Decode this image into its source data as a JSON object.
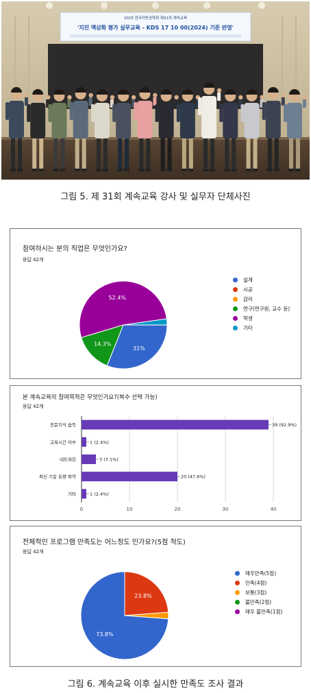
{
  "photo": {
    "banner_line1": "2025 한국지반공학회 제31회 계속교육",
    "banner_line2": "'지진 액상화 평가 실무교육 - KDS 17 10 00(2024) 기준 반영'",
    "person_count": 14
  },
  "caption1": "그림 5. 제 31회 계속교육 강사 및 실무자 단체사진",
  "caption2": "그림 6. 계속교육 이후 실시한 만족도 조사 결과",
  "colors": {
    "blue": "#3366cc",
    "red": "#dc3912",
    "orange": "#ff9900",
    "green": "#109618",
    "purple": "#990099",
    "teal": "#0099c6",
    "bar": "#673ab7"
  },
  "chart_data": [
    {
      "type": "pie",
      "title": "참여하시는 분의 직업은 무엇인가요?",
      "subtitle": "응답 42개",
      "categories": [
        "설계",
        "시공",
        "감리",
        "연구(연구원, 교수 등)",
        "학생",
        "기타"
      ],
      "values": [
        31,
        0,
        0,
        14.3,
        52.4,
        2.3
      ],
      "labels": [
        "31%",
        "",
        "",
        "14.3%",
        "52.4%",
        ""
      ],
      "legend_position": "right"
    },
    {
      "type": "bar",
      "orientation": "horizontal",
      "title": "본 계속교육의 참여목적은 무엇인가요?(복수 선택 가능)",
      "subtitle": "응답 42개",
      "categories": [
        "전문지식 습득",
        "교육시간 이수",
        "네트워킹",
        "최신 기술 동향 파악",
        "기타"
      ],
      "values": [
        39,
        1,
        3,
        20,
        1
      ],
      "labels": [
        "39 (92.9%)",
        "1 (2.4%)",
        "3 (7.1%)",
        "20 (47.6%)",
        "1 (2.4%)"
      ],
      "xlim": [
        0,
        40
      ],
      "xticks": [
        "0",
        "10",
        "20",
        "30",
        "40"
      ],
      "grid": true
    },
    {
      "type": "pie",
      "title": "전체적인 프로그램 만족도는 어느정도 인가요?(5점 척도)",
      "subtitle": "응답 42개",
      "categories": [
        "매우만족(5점)",
        "만족(4점)",
        "보통(3점)",
        "불만족(2점)",
        "매우 불만족(1점)"
      ],
      "values": [
        73.8,
        23.8,
        2.4,
        0,
        0
      ],
      "labels": [
        "73.8%",
        "23.8%",
        "",
        "",
        ""
      ],
      "legend_position": "right"
    }
  ]
}
